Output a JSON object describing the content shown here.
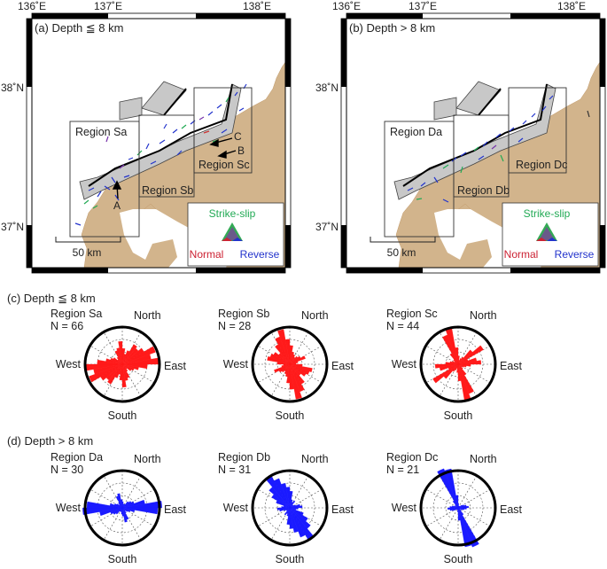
{
  "maps": [
    {
      "id": "a",
      "panel_title": "(a) Depth ≦ 8 km",
      "lon_labels": [
        "136˚E",
        "137˚E",
        "138˚E"
      ],
      "lat_labels": [
        "38˚N",
        "37˚N"
      ],
      "region_labels": [
        "Region Sa",
        "Region Sb",
        "Region Sc"
      ],
      "point_labels": [
        "A",
        "B",
        "C"
      ],
      "scale_label": "50 km",
      "legend": {
        "top": "Strike-slip",
        "left": "Normal",
        "right": "Reverse"
      }
    },
    {
      "id": "b",
      "panel_title": "(b) Depth > 8 km",
      "lon_labels": [
        "136˚E",
        "137˚E",
        "138˚E"
      ],
      "lat_labels": [
        "38˚N",
        "37˚N"
      ],
      "region_labels": [
        "Region Da",
        "Region Db",
        "Region Dc"
      ],
      "scale_label": "50 km",
      "legend": {
        "top": "Strike-slip",
        "left": "Normal",
        "right": "Reverse"
      }
    }
  ],
  "rose_sections": [
    {
      "title": "(c) Depth ≦ 8 km",
      "color": "#ff1a1a",
      "roses": [
        {
          "region": "Region Sa",
          "n": "N = 66",
          "north": "North",
          "south": "South",
          "west": "West",
          "east": "East",
          "values": [
            0.38,
            0.25,
            0.35,
            0.55,
            0.5,
            0.6,
            0.85,
            0.7,
            0.9,
            0.6,
            0.4,
            0.3,
            0.25,
            0.15,
            0.2,
            0.35,
            0.4,
            0.55
          ]
        },
        {
          "region": "Region Sb",
          "n": "N = 28",
          "north": "North",
          "south": "South",
          "west": "West",
          "east": "East",
          "values": [
            0.45,
            0.3,
            0.25,
            0.2,
            0.25,
            0.3,
            0.4,
            0.2,
            0.15,
            0.3,
            0.55,
            0.5,
            0.45,
            0.35,
            0.55,
            0.7,
            0.85,
            0.6
          ]
        },
        {
          "region": "Region Sc",
          "n": "N = 44",
          "north": "North",
          "south": "South",
          "west": "West",
          "east": "East",
          "values": [
            0.2,
            0.1,
            0.15,
            0.2,
            0.45,
            0.7,
            0.25,
            0.45,
            0.55,
            0.3,
            0.2,
            0.15,
            0.1,
            0.15,
            0.3,
            0.75,
            0.9,
            0.4
          ]
        }
      ]
    },
    {
      "title": "(d) Depth > 8 km",
      "color": "#1a1aff",
      "roses": [
        {
          "region": "Region Da",
          "n": "N = 30",
          "north": "North",
          "south": "South",
          "west": "West",
          "east": "East",
          "values": [
            0.15,
            0.1,
            0.1,
            0.1,
            0.2,
            0.25,
            0.3,
            0.55,
            0.95,
            0.85,
            0.3,
            0.2,
            0.15,
            0.1,
            0.15,
            0.3,
            0.35,
            0.2
          ]
        },
        {
          "region": "Region Db",
          "n": "N = 31",
          "north": "North",
          "south": "South",
          "west": "West",
          "east": "East",
          "values": [
            0.4,
            0.2,
            0.15,
            0.2,
            0.1,
            0.1,
            0.15,
            0.25,
            0.3,
            0.2,
            0.15,
            0.35,
            0.5,
            0.65,
            0.9,
            0.75,
            0.6,
            0.5
          ]
        },
        {
          "region": "Region Dc",
          "n": "N = 21",
          "north": "North",
          "south": "South",
          "west": "West",
          "east": "East",
          "values": [
            0.1,
            0.05,
            0.05,
            0.05,
            0.05,
            0.1,
            0.15,
            0.2,
            0.25,
            0.2,
            0.15,
            0.1,
            0.05,
            0.1,
            0.2,
            1.0,
            0.95,
            0.3
          ]
        }
      ]
    }
  ]
}
